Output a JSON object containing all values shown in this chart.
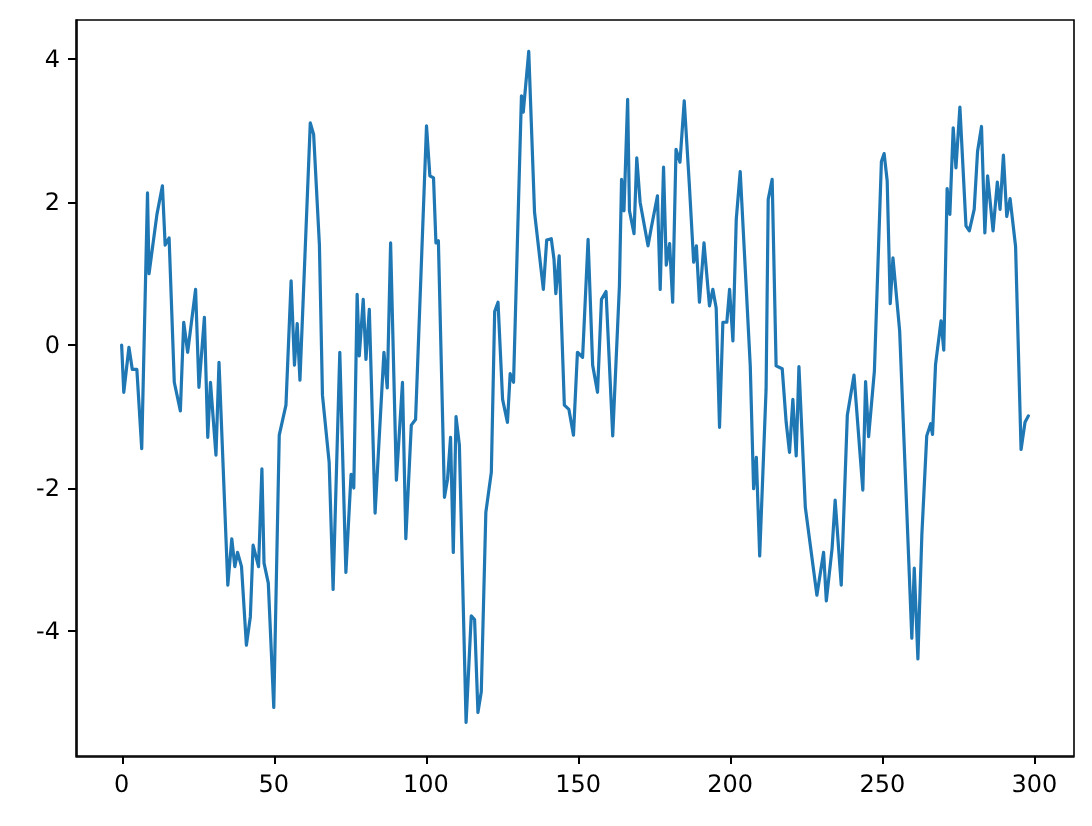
{
  "chart_data": {
    "type": "line",
    "xlim": [
      -15,
      313
    ],
    "xticks": [
      0,
      50,
      100,
      150,
      200,
      250,
      300
    ],
    "ylim": [
      -5.75,
      4.55
    ],
    "yticks": [
      -4,
      -2,
      0,
      2,
      4
    ],
    "grid": false,
    "marker": "none",
    "line_style": "solid",
    "series": [
      {
        "color": "#1f77b4",
        "x": [
          0,
          0.7,
          2.4,
          3.5,
          5,
          6.6,
          8.5,
          9,
          11.6,
          13.4,
          14.3,
          15.6,
          17.3,
          19.3,
          20.4,
          21.7,
          24.3,
          25.4,
          27.2,
          28.3,
          29.2,
          31,
          32,
          34.9,
          36.2,
          37.2,
          38.1,
          39.4,
          41,
          42.3,
          43.2,
          45,
          46.1,
          46.8,
          48.2,
          50,
          51.8,
          54,
          55.7,
          56.8,
          57.7,
          58.6,
          62,
          63.1,
          65,
          66,
          68.2,
          69.5,
          71.7,
          73.7,
          75.4,
          76.3,
          77.4,
          78.1,
          79.4,
          80.3,
          81.4,
          83.3,
          86.2,
          87.3,
          88.4,
          90.3,
          92.3,
          93.4,
          95.2,
          96.6,
          100.2,
          101.3,
          102.5,
          103.3,
          104.1,
          106.1,
          107.1,
          108.1,
          109,
          109.9,
          111,
          113.2,
          114.9,
          116,
          117.1,
          118.2,
          119.7,
          121.5,
          122.6,
          123.7,
          125.2,
          126.8,
          127.7,
          128.8,
          131.4,
          132,
          133.8,
          135.7,
          138.6,
          139.7,
          141.2,
          142.1,
          142.7,
          143.8,
          145.5,
          147,
          148.5,
          149.8,
          151.5,
          153.3,
          154.8,
          156.4,
          157.7,
          159.2,
          161.4,
          163.6,
          164.3,
          165.1,
          166.3,
          166.9,
          168.4,
          169.3,
          170.4,
          173,
          174.1,
          176.1,
          177,
          178.1,
          179,
          180.1,
          181.1,
          182.2,
          183.5,
          184.9,
          186.6,
          188,
          188.9,
          189.9,
          191.4,
          193.2,
          194.3,
          195.4,
          196.5,
          197.6,
          198.9,
          199.8,
          200.9,
          202,
          203.3,
          206.6,
          207.7,
          208.6,
          209.7,
          211.8,
          212.5,
          213.8,
          215.1,
          217.1,
          218.4,
          219.5,
          220.6,
          221.7,
          222.6,
          224.7,
          228.5,
          230.7,
          231.6,
          233.5,
          234.5,
          236.5,
          238.5,
          240.7,
          243.6,
          244.5,
          245.5,
          247.4,
          249.7,
          250.6,
          251.6,
          252.6,
          253.5,
          255.7,
          259.7,
          260.5,
          261.7,
          263,
          264.6,
          265.9,
          266.5,
          267.5,
          269.3,
          270.2,
          271.3,
          272.2,
          273.3,
          274.2,
          275.5,
          277.5,
          278.6,
          280.2,
          281.3,
          282.6,
          283.7,
          284.6,
          286.4,
          287.8,
          288.7,
          289.8,
          290.9,
          292,
          293.8,
          295.6,
          296.9,
          298
        ],
        "values": [
          0,
          -0.66,
          -0.03,
          -0.34,
          -0.34,
          -1.45,
          2.13,
          1.0,
          1.83,
          2.23,
          1.4,
          1.5,
          -0.52,
          -0.92,
          0.32,
          -0.1,
          0.78,
          -0.59,
          0.39,
          -1.29,
          -0.52,
          -1.54,
          -0.24,
          -3.36,
          -2.71,
          -3.1,
          -2.9,
          -3.1,
          -4.2,
          -3.8,
          -2.8,
          -3.1,
          -1.73,
          -3.05,
          -3.33,
          -5.07,
          -1.26,
          -0.84,
          0.9,
          -0.28,
          0.3,
          -0.49,
          3.11,
          2.95,
          1.4,
          -0.7,
          -1.64,
          -3.42,
          -0.1,
          -3.18,
          -1.81,
          -2.0,
          0.71,
          -0.15,
          0.64,
          -0.2,
          0.5,
          -2.35,
          -0.1,
          -0.6,
          1.43,
          -1.89,
          -0.52,
          -2.71,
          -1.12,
          -1.04,
          3.07,
          2.37,
          2.34,
          1.43,
          1.46,
          -2.13,
          -1.88,
          -1.29,
          -2.9,
          -1.0,
          -1.4,
          -5.28,
          -3.79,
          -3.84,
          -5.14,
          -4.85,
          -2.34,
          -1.78,
          0.47,
          0.6,
          -0.76,
          -1.08,
          -0.4,
          -0.52,
          3.49,
          3.26,
          4.11,
          1.86,
          0.78,
          1.47,
          1.49,
          1.2,
          0.72,
          1.25,
          -0.84,
          -0.9,
          -1.26,
          -0.1,
          -0.17,
          1.48,
          -0.28,
          -0.66,
          0.64,
          0.75,
          -1.27,
          0.83,
          2.32,
          1.88,
          3.44,
          1.88,
          1.56,
          2.62,
          2.0,
          1.39,
          1.65,
          2.09,
          0.78,
          2.49,
          1.12,
          1.42,
          0.6,
          2.74,
          2.56,
          3.42,
          2.23,
          1.16,
          1.39,
          0.6,
          1.43,
          0.55,
          0.78,
          0.52,
          -1.15,
          0.32,
          0.32,
          0.78,
          0.06,
          1.76,
          2.43,
          -0.29,
          -2.01,
          -1.57,
          -2.95,
          -0.62,
          2.04,
          2.32,
          -0.29,
          -0.33,
          -1.08,
          -1.5,
          -0.76,
          -1.55,
          -0.3,
          -2.27,
          -3.5,
          -2.9,
          -3.58,
          -2.84,
          -2.17,
          -3.36,
          -0.98,
          -0.42,
          -2.03,
          -0.51,
          -1.28,
          -0.36,
          2.57,
          2.68,
          2.3,
          0.58,
          1.22,
          0.2,
          -4.1,
          -3.12,
          -4.39,
          -2.65,
          -1.27,
          -1.1,
          -1.25,
          -0.27,
          0.34,
          -0.07,
          2.19,
          1.83,
          3.04,
          2.48,
          3.33,
          1.67,
          1.6,
          1.9,
          2.71,
          3.06,
          1.57,
          2.37,
          1.6,
          2.28,
          1.9,
          2.66,
          1.8,
          2.05,
          1.38,
          -1.46,
          -1.08,
          -0.99
        ]
      }
    ]
  }
}
